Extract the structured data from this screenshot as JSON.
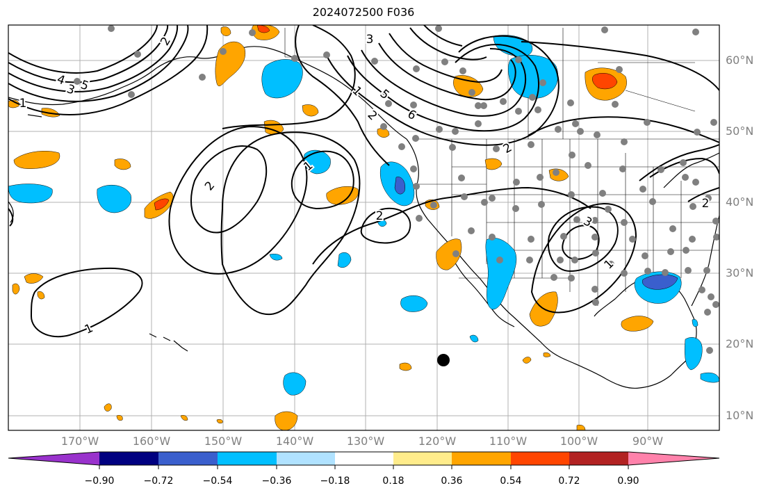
{
  "title": "2024072500 F036",
  "lat_labels": [
    "60°N",
    "50°N",
    "40°N",
    "30°N",
    "20°N",
    "10°N"
  ],
  "lon_labels": [
    "170°W",
    "160°W",
    "150°W",
    "140°W",
    "130°W",
    "120°W",
    "110°W",
    "100°W",
    "90°W"
  ],
  "contour_labels": [
    "1",
    "1",
    "2",
    "3",
    "4",
    "5",
    "5",
    "6",
    "2",
    "2",
    "2",
    "1",
    "2",
    "3",
    "1",
    "2",
    "1",
    "3"
  ],
  "colorbar": {
    "ticks": [
      "−0.90",
      "−0.72",
      "−0.54",
      "−0.36",
      "−0.18",
      "0.18",
      "0.36",
      "0.54",
      "0.72",
      "0.90"
    ],
    "colors": [
      "#9932CC",
      "#000080",
      "#3A5FCD",
      "#00BFFF",
      "#B0E2FF",
      "#FFFFFF",
      "#FFEC8B",
      "#FFA500",
      "#FF4500",
      "#B22222",
      "#FF82AB"
    ]
  },
  "colors": {
    "gridline": "#b0b0b0",
    "station_dot": "#808080",
    "contour": "#000000"
  }
}
